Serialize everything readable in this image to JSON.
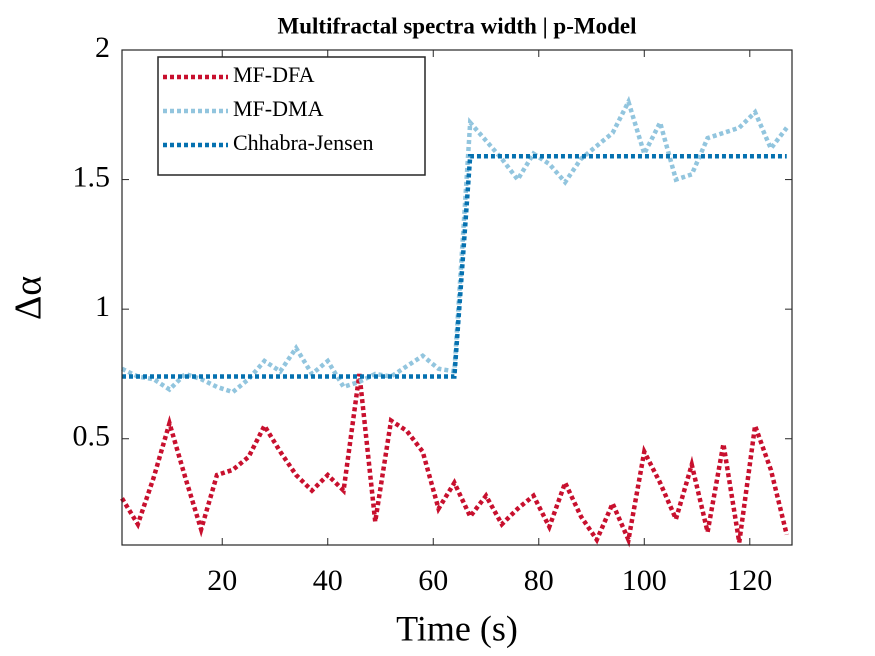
{
  "chart_data": {
    "type": "line",
    "title": "Multifractal spectra width | p-Model",
    "x_label": "Time (s)",
    "y_label": "Δα",
    "x": [
      1,
      4,
      7,
      10,
      13,
      16,
      19,
      22,
      25,
      28,
      31,
      34,
      37,
      40,
      43,
      46,
      49,
      52,
      55,
      58,
      61,
      64,
      67,
      70,
      73,
      76,
      79,
      82,
      85,
      88,
      91,
      94,
      97,
      100,
      103,
      106,
      109,
      112,
      115,
      118,
      121,
      124,
      127
    ],
    "series": [
      {
        "name": "MF-DFA",
        "color": "#c8102e",
        "values": [
          0.27,
          0.17,
          0.35,
          0.56,
          0.35,
          0.15,
          0.36,
          0.38,
          0.43,
          0.55,
          0.45,
          0.36,
          0.3,
          0.36,
          0.3,
          0.75,
          0.18,
          0.57,
          0.53,
          0.45,
          0.23,
          0.33,
          0.2,
          0.28,
          0.17,
          0.23,
          0.28,
          0.16,
          0.33,
          0.2,
          0.11,
          0.25,
          0.11,
          0.45,
          0.33,
          0.19,
          0.4,
          0.14,
          0.48,
          0.1,
          0.55,
          0.38,
          0.13
        ]
      },
      {
        "name": "MF-DMA",
        "color": "#92c5de",
        "values": [
          0.77,
          0.74,
          0.73,
          0.69,
          0.75,
          0.73,
          0.7,
          0.68,
          0.73,
          0.8,
          0.76,
          0.85,
          0.75,
          0.8,
          0.7,
          0.72,
          0.75,
          0.74,
          0.78,
          0.82,
          0.77,
          0.76,
          1.72,
          1.65,
          1.58,
          1.5,
          1.6,
          1.56,
          1.49,
          1.58,
          1.63,
          1.68,
          1.8,
          1.6,
          1.72,
          1.5,
          1.52,
          1.66,
          1.68,
          1.7,
          1.76,
          1.62,
          1.7
        ]
      },
      {
        "name": "Chhabra-Jensen",
        "color": "#0571b0",
        "values": [
          0.74,
          0.74,
          0.74,
          0.74,
          0.74,
          0.74,
          0.74,
          0.74,
          0.74,
          0.74,
          0.74,
          0.74,
          0.74,
          0.74,
          0.74,
          0.74,
          0.74,
          0.74,
          0.74,
          0.74,
          0.74,
          0.74,
          1.59,
          1.59,
          1.59,
          1.59,
          1.59,
          1.59,
          1.59,
          1.59,
          1.59,
          1.59,
          1.59,
          1.59,
          1.59,
          1.59,
          1.59,
          1.59,
          1.59,
          1.59,
          1.59,
          1.59,
          1.59
        ]
      }
    ],
    "xlim": [
      1,
      128
    ],
    "ylim": [
      0.09,
      2
    ],
    "xticks": [
      20,
      40,
      60,
      80,
      100,
      120
    ],
    "yticks": [
      0.5,
      1,
      1.5,
      2
    ],
    "legend": "upper-left"
  }
}
